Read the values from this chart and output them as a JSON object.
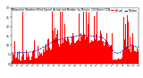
{
  "n_points": 1440,
  "bar_color": "#ff0000",
  "median_color": "#0000cc",
  "background_color": "#ffffff",
  "plot_bg_color": "#ffffff",
  "vline_color": "#808080",
  "vline_style": ":",
  "ylim": [
    0,
    30
  ],
  "ytick_values": [
    0,
    5,
    10,
    15,
    20,
    25,
    30
  ],
  "legend_actual_color": "#ff0000",
  "legend_median_color": "#0000cc",
  "title_fontsize": 2.8,
  "tick_fontsize": 2.2,
  "figwidth": 1.6,
  "figheight": 0.87,
  "dpi": 100
}
